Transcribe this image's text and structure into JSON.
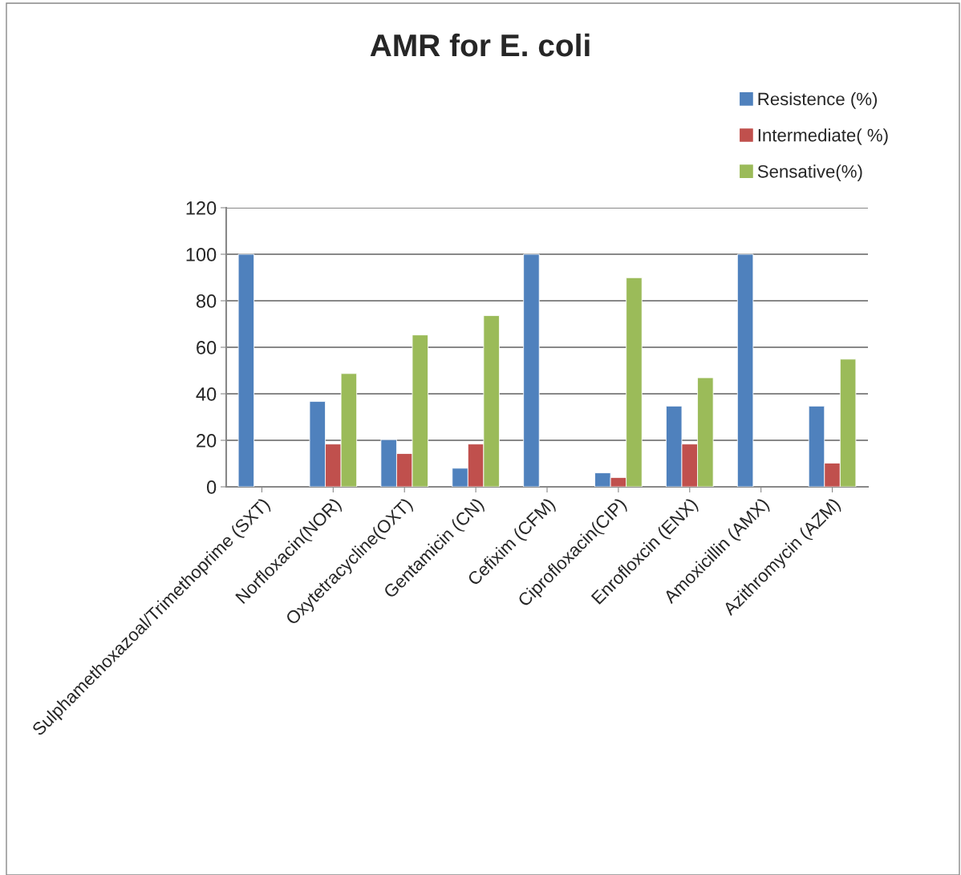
{
  "chart_data": {
    "type": "bar",
    "title": "AMR for E. coli",
    "categories": [
      "Sulphamethoxazoal/Trimethoprime (SXT)",
      "Norfloxacin(NOR)",
      "Oxytetracycline(OXT)",
      "Gentamicin (CN)",
      "Cefixim (CFM)",
      "Ciprofloxacin(CIP)",
      "Enrofloxcin (ENX)",
      "Amoxicillin (AMX)",
      "Azithromycin (AZM)"
    ],
    "series": [
      {
        "name": "Resistence (%)",
        "color": "#4f81bd",
        "values": [
          100,
          36.7,
          20.3,
          8.0,
          100,
          6.0,
          34.7,
          100,
          34.7
        ]
      },
      {
        "name": "Intermediate( %)",
        "color": "#c0504d",
        "values": [
          0,
          18.4,
          14.3,
          18.4,
          0,
          4.0,
          18.4,
          0,
          10.2
        ]
      },
      {
        "name": "Sensative(%)",
        "color": "#9bbb59",
        "values": [
          0,
          48.7,
          65.3,
          73.6,
          0,
          89.9,
          46.9,
          0,
          54.9
        ]
      }
    ],
    "ylim": [
      0,
      120
    ],
    "yticks": [
      0,
      20,
      40,
      60,
      80,
      100,
      120
    ],
    "grid": "y",
    "legend": "top right"
  }
}
